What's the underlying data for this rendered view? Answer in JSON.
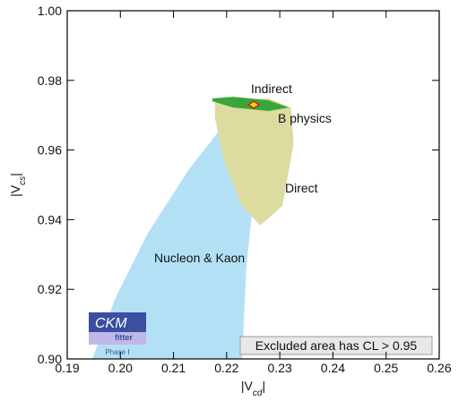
{
  "chart_data": {
    "type": "contour",
    "x_label": {
      "main": "|V",
      "sub": "cd",
      "end": "|"
    },
    "y_label": {
      "main": "|V",
      "sub": "cs",
      "end": "|"
    },
    "xlim": [
      0.19,
      0.26
    ],
    "ylim": [
      0.9,
      1.0
    ],
    "xticks": [
      0.19,
      {
        "value": 0.2,
        "label": "0.20"
      },
      0.21,
      0.22,
      0.23,
      0.24,
      0.25,
      0.26
    ],
    "yticks": [
      {
        "value": 0.9,
        "label": "0.90"
      },
      0.92,
      0.94,
      0.96,
      0.98,
      {
        "value": 1.0,
        "label": "1.00"
      }
    ],
    "regions": [
      {
        "name": "Nucleon & Kaon",
        "color": "#b3e0f5",
        "x": [
          0.1947,
          0.1993,
          0.2052,
          0.2128,
          0.2187,
          0.2237,
          0.2268,
          0.2274,
          0.2263,
          0.2249,
          0.2237,
          0.2229
        ],
        "y": [
          0.9,
          0.9183,
          0.9362,
          0.9542,
          0.9658,
          0.9717,
          0.9728,
          0.971,
          0.9594,
          0.944,
          0.926,
          0.9
        ]
      },
      {
        "name": "Direct",
        "color": "#dcdca0",
        "x": [
          0.2178,
          0.2279,
          0.2321,
          0.2326,
          0.2305,
          0.2263,
          0.2229,
          0.2195,
          0.2178
        ],
        "y": [
          0.9743,
          0.9748,
          0.9722,
          0.9619,
          0.944,
          0.9383,
          0.944,
          0.9568,
          0.9692
        ]
      },
      {
        "name": "Indirect",
        "color": "#3aa63a",
        "x": [
          0.2173,
          0.2212,
          0.2279,
          0.2317,
          0.2279,
          0.2212,
          0.2173
        ],
        "y": [
          0.9748,
          0.9753,
          0.9743,
          0.9722,
          0.9712,
          0.9722,
          0.974
        ]
      },
      {
        "name": "B physics",
        "color": "#f5e000",
        "x": [
          0.2241,
          0.2251,
          0.2261,
          0.2251
        ],
        "y": [
          0.973,
          0.974,
          0.973,
          0.972
        ]
      }
    ],
    "note": "Excluded area has CL > 0.95",
    "logo": {
      "top": "CKM",
      "middle": "fitter",
      "bottom": "Phase I"
    }
  }
}
